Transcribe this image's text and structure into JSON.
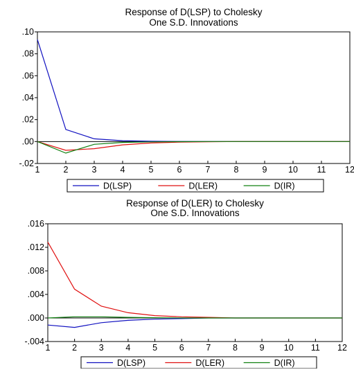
{
  "chart_data": [
    {
      "type": "line",
      "title": "Response of D(LSP) to Cholesky",
      "subtitle": "One S.D. Innovations",
      "x": [
        1,
        2,
        3,
        4,
        5,
        6,
        7,
        8,
        9,
        10,
        11,
        12
      ],
      "xlim": [
        1,
        12
      ],
      "ylim": [
        -0.02,
        0.1
      ],
      "yticks": [
        -0.02,
        0.0,
        0.02,
        0.04,
        0.06,
        0.08,
        0.1
      ],
      "ytick_labels": [
        "-.02",
        ".00",
        ".02",
        ".04",
        ".06",
        ".08",
        ".10"
      ],
      "xtick_labels": [
        "1",
        "2",
        "3",
        "4",
        "5",
        "6",
        "7",
        "8",
        "9",
        "10",
        "11",
        "12"
      ],
      "zero_line": true,
      "grid": false,
      "legend_position": "bottom",
      "series": [
        {
          "name": "D(LSP)",
          "color": "#1010c0",
          "values": [
            0.093,
            0.011,
            0.0025,
            0.0008,
            0.0003,
            0.0001,
            0,
            0,
            0,
            0,
            0,
            0
          ]
        },
        {
          "name": "D(LER)",
          "color": "#e01010",
          "values": [
            0,
            -0.008,
            -0.0065,
            -0.003,
            -0.0013,
            -0.0005,
            -0.0002,
            0,
            0,
            0,
            0,
            0
          ]
        },
        {
          "name": "D(IR)",
          "color": "#108010",
          "values": [
            0,
            -0.0105,
            -0.0025,
            -0.0008,
            -0.0003,
            -0.0001,
            0,
            0,
            0,
            0,
            0,
            0
          ]
        }
      ]
    },
    {
      "type": "line",
      "title": "Response of D(LER) to Cholesky",
      "subtitle": "One S.D. Innovations",
      "x": [
        1,
        2,
        3,
        4,
        5,
        6,
        7,
        8,
        9,
        10,
        11,
        12
      ],
      "xlim": [
        1,
        12
      ],
      "ylim": [
        -0.004,
        0.016
      ],
      "yticks": [
        -0.004,
        0.0,
        0.004,
        0.008,
        0.012,
        0.016
      ],
      "ytick_labels": [
        "-.004",
        ".000",
        ".004",
        ".008",
        ".012",
        ".016"
      ],
      "xtick_labels": [
        "1",
        "2",
        "3",
        "4",
        "5",
        "6",
        "7",
        "8",
        "9",
        "10",
        "11",
        "12"
      ],
      "zero_line": true,
      "grid": false,
      "legend_position": "bottom",
      "series": [
        {
          "name": "D(LSP)",
          "color": "#1010c0",
          "values": [
            -0.0012,
            -0.0016,
            -0.0008,
            -0.0004,
            -0.0002,
            -0.0001,
            0,
            0,
            0,
            0,
            0,
            0
          ]
        },
        {
          "name": "D(LER)",
          "color": "#e01010",
          "values": [
            0.0129,
            0.0049,
            0.002,
            0.0009,
            0.0004,
            0.0002,
            0.0001,
            0,
            0,
            0,
            0,
            0
          ]
        },
        {
          "name": "D(IR)",
          "color": "#108010",
          "values": [
            0,
            0.0002,
            0.0002,
            0.0001,
            5e-05,
            0,
            0,
            0,
            0,
            0,
            0,
            0
          ]
        }
      ]
    }
  ]
}
